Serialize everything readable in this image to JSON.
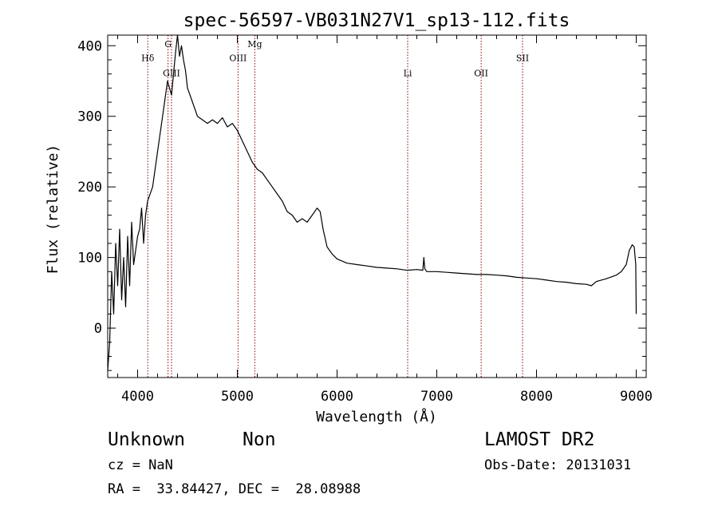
{
  "chart_data": {
    "type": "line",
    "title": "spec-56597-VB031N27V1_sp13-112.fits",
    "xlabel": "Wavelength (Å)",
    "ylabel": "Flux (relative)",
    "xlim": [
      3700,
      9100
    ],
    "ylim": [
      -70,
      415
    ],
    "x_ticks": [
      4000,
      5000,
      6000,
      7000,
      8000,
      9000
    ],
    "x_tick_labels": [
      "4000",
      "5000",
      "6000",
      "7000",
      "8000",
      "9000"
    ],
    "y_ticks": [
      0,
      100,
      200,
      300,
      400
    ],
    "y_tick_labels": [
      "0",
      "100",
      "200",
      "300",
      "400"
    ],
    "grid": false,
    "legend": "none",
    "line_color": "#000000",
    "marker_color": "#8b0000",
    "series": [
      {
        "x": [
          3700,
          3720,
          3740,
          3760,
          3780,
          3800,
          3820,
          3840,
          3860,
          3880,
          3900,
          3920,
          3940,
          3960,
          3980,
          4000,
          4020,
          4040,
          4060,
          4080,
          4100,
          4150,
          4200,
          4250,
          4300,
          4340,
          4380,
          4400,
          4420,
          4440,
          4460,
          4480,
          4500,
          4550,
          4600,
          4650,
          4700,
          4750,
          4800,
          4850,
          4900,
          4950,
          5000,
          5050,
          5100,
          5150,
          5200,
          5250,
          5300,
          5350,
          5400,
          5450,
          5500,
          5550,
          5600,
          5650,
          5700,
          5750,
          5800,
          5830,
          5860,
          5900,
          5950,
          6000,
          6100,
          6200,
          6300,
          6400,
          6500,
          6600,
          6700,
          6800,
          6860,
          6870,
          6880,
          6900,
          7000,
          7100,
          7200,
          7300,
          7400,
          7500,
          7600,
          7700,
          7800,
          7900,
          8000,
          8100,
          8200,
          8300,
          8400,
          8500,
          8550,
          8600,
          8700,
          8800,
          8850,
          8900,
          8930,
          8960,
          8980,
          8995,
          9000
        ],
        "y": [
          -60,
          -20,
          80,
          20,
          120,
          60,
          140,
          40,
          100,
          30,
          130,
          60,
          150,
          90,
          110,
          130,
          140,
          170,
          120,
          160,
          180,
          200,
          250,
          300,
          350,
          330,
          390,
          415,
          385,
          400,
          380,
          365,
          340,
          320,
          300,
          295,
          290,
          295,
          290,
          298,
          285,
          290,
          280,
          265,
          250,
          235,
          225,
          220,
          210,
          200,
          190,
          180,
          165,
          160,
          150,
          155,
          150,
          160,
          170,
          165,
          140,
          115,
          105,
          98,
          92,
          90,
          88,
          86,
          85,
          84,
          82,
          83,
          82,
          100,
          84,
          80,
          80,
          79,
          78,
          77,
          76,
          76,
          75,
          74,
          72,
          71,
          70,
          68,
          66,
          65,
          63,
          62,
          60,
          66,
          70,
          75,
          80,
          90,
          110,
          118,
          115,
          90,
          20
        ]
      }
    ],
    "spectral_lines": [
      {
        "label": "Hδ",
        "x": 4102,
        "label_y": 378
      },
      {
        "label": "G",
        "x": 4305,
        "label_y": 398
      },
      {
        "label": "GIII",
        "x": 4340,
        "label_y": 357
      },
      {
        "label": "OIII",
        "x": 5007,
        "label_y": 378
      },
      {
        "label": "Mg",
        "x": 5175,
        "label_y": 398
      },
      {
        "label": "Li",
        "x": 6708,
        "label_y": 357
      },
      {
        "label": "OII",
        "x": 7445,
        "label_y": 357
      },
      {
        "label": "SII",
        "x": 7860,
        "label_y": 378
      }
    ]
  },
  "footer": {
    "object_class": "Unknown",
    "subclass": "Non",
    "survey": "LAMOST DR2",
    "redshift": "cz = NaN",
    "obs_date": "Obs-Date: 20131031",
    "coords": "RA =  33.84427, DEC =  28.08988"
  }
}
